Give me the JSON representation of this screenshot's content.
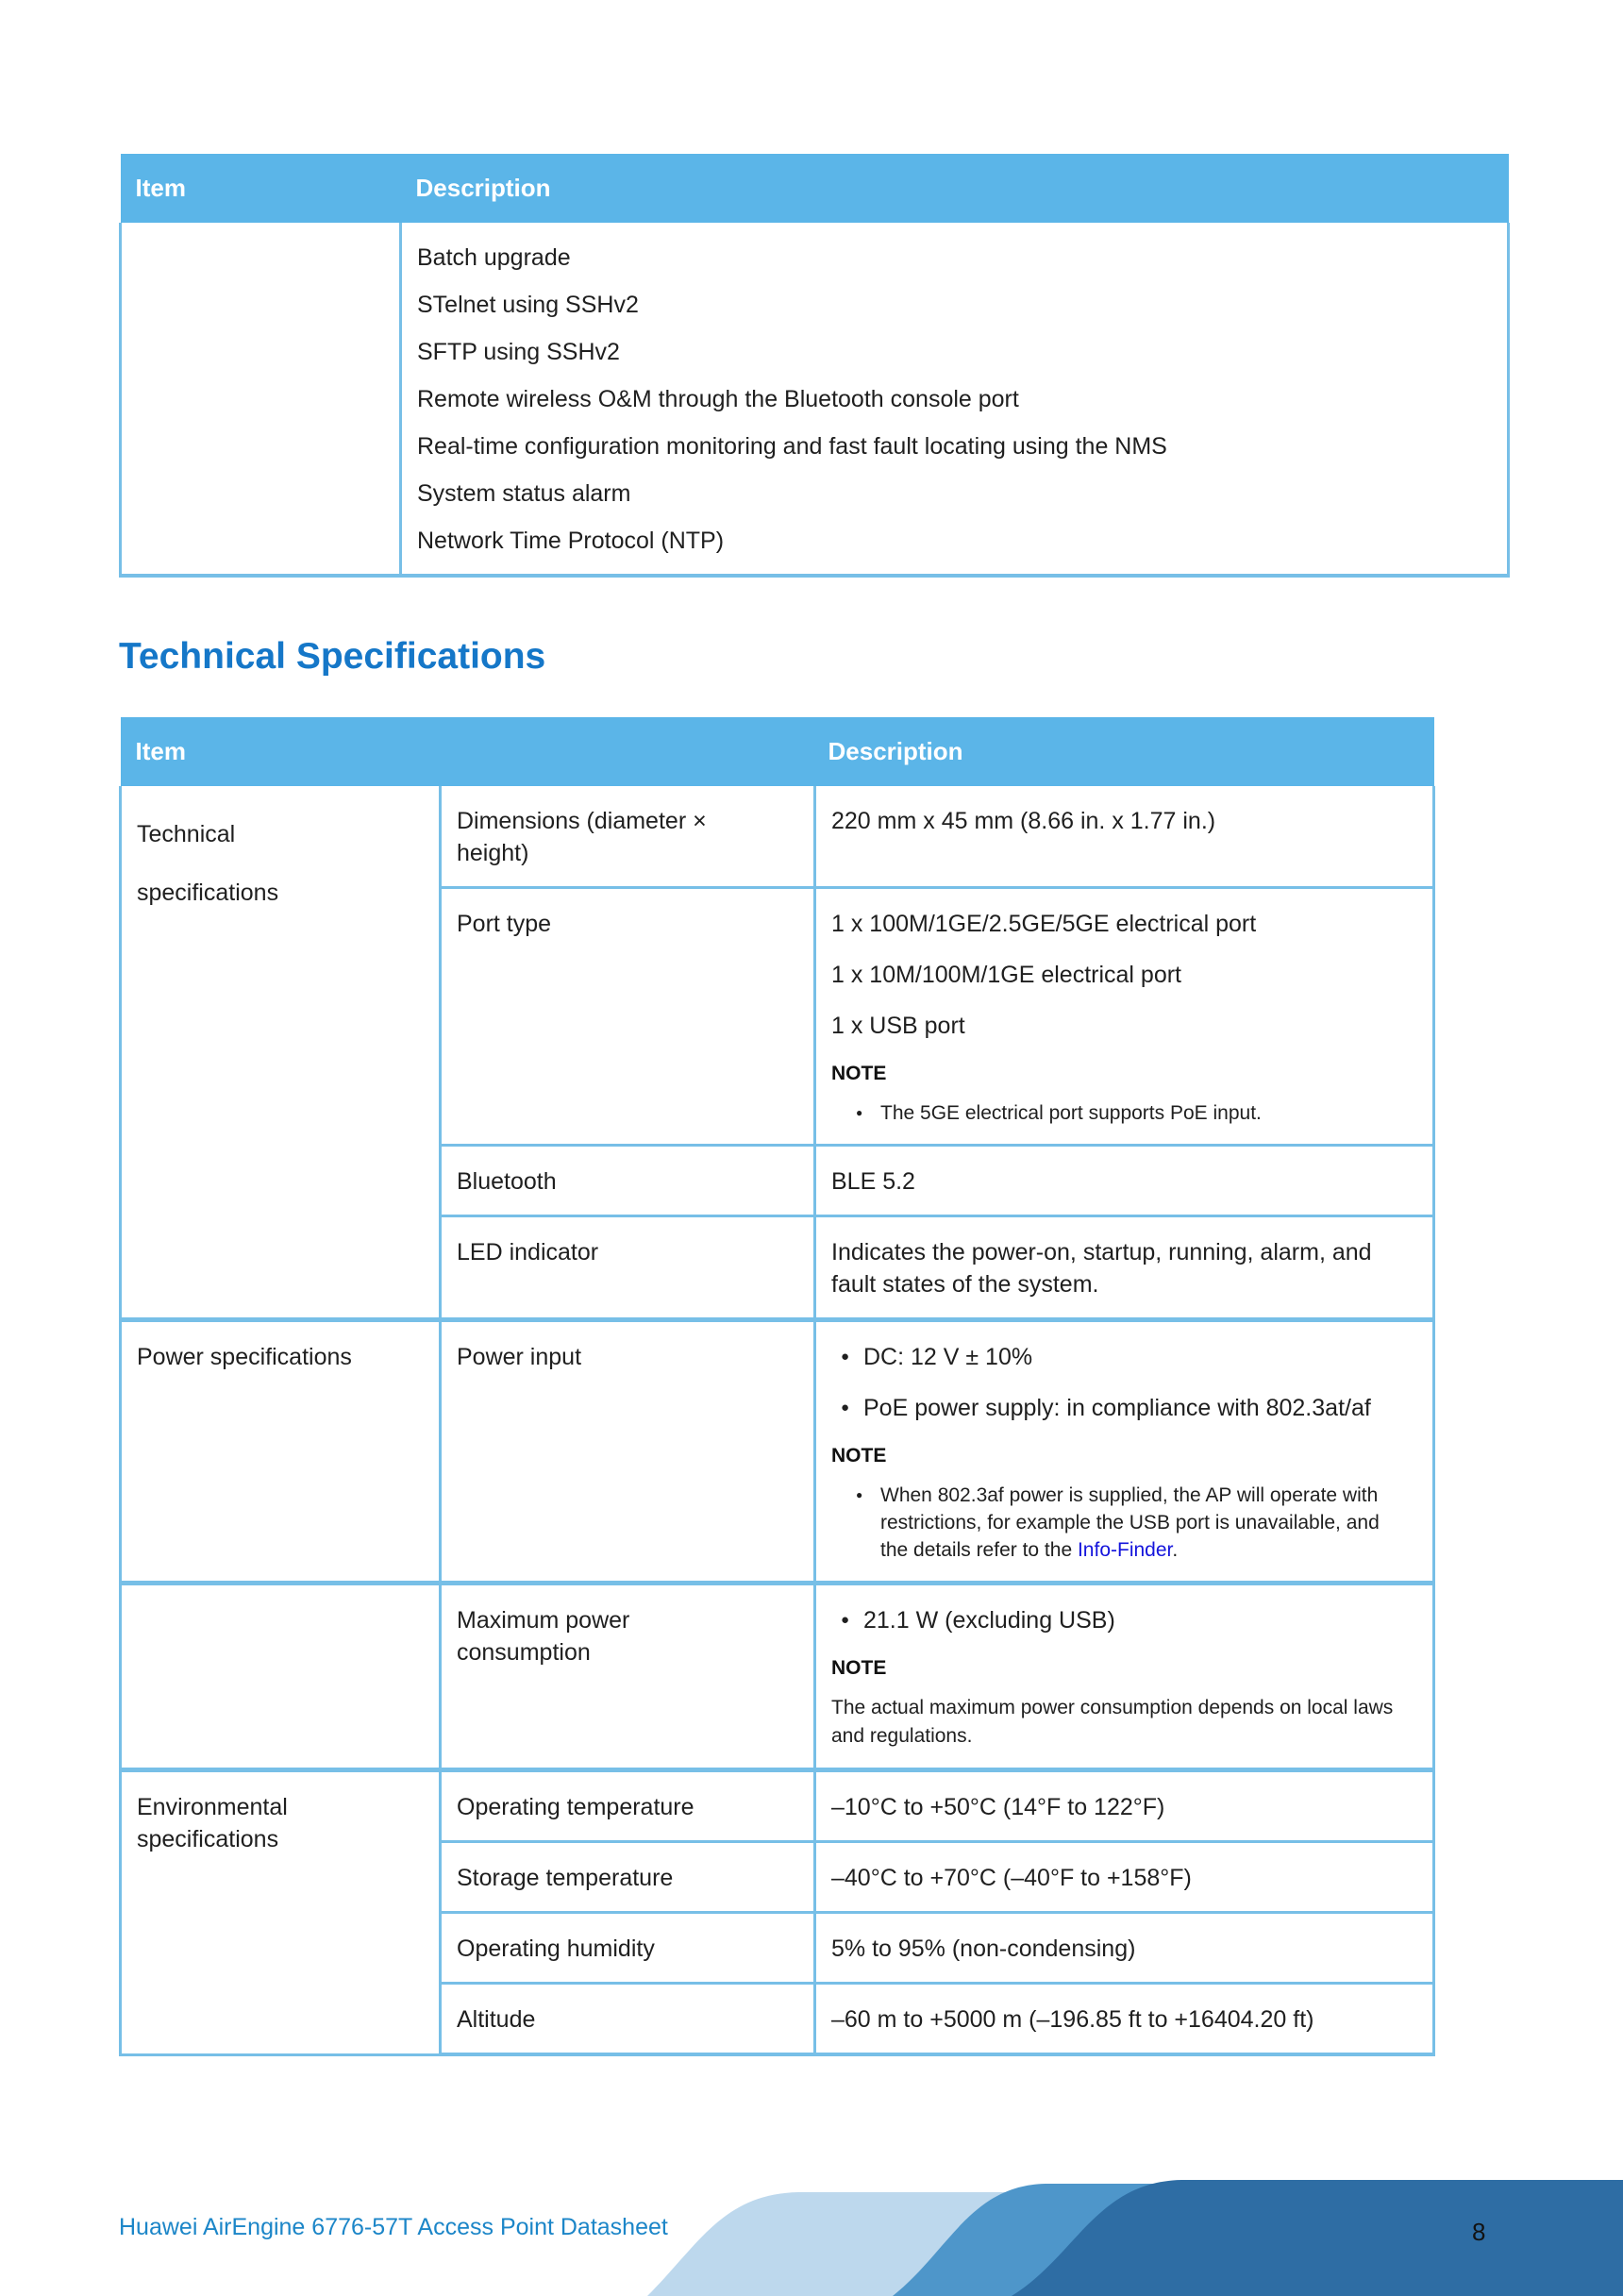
{
  "colors": {
    "header_bg": "#5BB5E8",
    "border": "#77BFE7",
    "heading": "#1577C8",
    "footer_text": "#1C86C8",
    "link": "#1414DC",
    "wave_light": "#BDD8ED",
    "wave_mid": "#4E96CA",
    "wave_dark": "#2E6DA4"
  },
  "section_title": "Technical Specifications",
  "table1": {
    "col_item": "Item",
    "col_desc": "Description",
    "item": "",
    "lines": [
      "Batch upgrade",
      "STelnet using SSHv2",
      "SFTP using SSHv2",
      "Remote wireless O&M through the Bluetooth console port",
      "Real-time configuration monitoring and fast fault locating using the NMS",
      "System status alarm",
      "Network Time Protocol (NTP)"
    ]
  },
  "table2": {
    "col_item": "Item",
    "col_desc": "Description",
    "groups": [
      {
        "item": "Technical\nspecifications",
        "spread": true,
        "rows": [
          {
            "item": "Dimensions (diameter ×\nheight)",
            "blocks": [
              {
                "t": "p",
                "x": "220 mm x 45 mm (8.66 in. x 1.77 in.)"
              }
            ]
          },
          {
            "item": "Port type",
            "blocks": [
              {
                "t": "p",
                "x": "1 x 100M/1GE/2.5GE/5GE electrical port"
              },
              {
                "t": "p",
                "x": "1 x 10M/100M/1GE electrical port"
              },
              {
                "t": "p",
                "x": "1 x USB port"
              },
              {
                "t": "nl",
                "x": "NOTE"
              },
              {
                "t": "nb",
                "x": "The 5GE electrical port supports PoE input."
              }
            ]
          },
          {
            "item": "Bluetooth",
            "blocks": [
              {
                "t": "p",
                "x": "BLE 5.2"
              }
            ]
          },
          {
            "item": "LED indicator",
            "blocks": [
              {
                "t": "p",
                "x": "Indicates the power-on, startup, running, alarm, and fault states of the system."
              }
            ]
          }
        ]
      },
      {
        "item": "Power specifications",
        "rows": [
          {
            "item": "Power input",
            "blocks": [
              {
                "t": "b",
                "x": "DC: 12 V ± 10%"
              },
              {
                "t": "b",
                "x": "PoE power supply: in compliance with 802.3at/af"
              },
              {
                "t": "nl",
                "x": "NOTE"
              },
              {
                "t": "nb",
                "segs": [
                  {
                    "x": "When 802.3af power is supplied, the AP will operate with restrictions, for example the USB port is unavailable, and the details refer to the "
                  },
                  {
                    "x": "Info-Finder",
                    "link": true
                  },
                  {
                    "x": "."
                  }
                ]
              }
            ]
          }
        ]
      },
      {
        "item": "",
        "rows": [
          {
            "item": "Maximum power\nconsumption",
            "blocks": [
              {
                "t": "b",
                "x": "21.1 W (excluding USB)"
              },
              {
                "t": "nl",
                "x": "NOTE"
              },
              {
                "t": "np",
                "x": "The actual maximum power consumption depends on local laws and regulations."
              }
            ]
          }
        ]
      },
      {
        "item": "Environmental\nspecifications",
        "rows": [
          {
            "item": "Operating temperature",
            "blocks": [
              {
                "t": "p",
                "x": "–10°C to +50°C (14°F to 122°F)"
              }
            ]
          },
          {
            "item": "Storage temperature",
            "blocks": [
              {
                "t": "p",
                "x": "–40°C to +70°C (–40°F to +158°F)"
              }
            ]
          },
          {
            "item": "Operating humidity",
            "blocks": [
              {
                "t": "p",
                "x": "5% to 95% (non-condensing)"
              }
            ]
          },
          {
            "item": "Altitude",
            "blocks": [
              {
                "t": "p",
                "x": "–60 m to +5000 m (–196.85 ft to +16404.20 ft)"
              }
            ]
          }
        ]
      }
    ]
  },
  "footer": {
    "doc_title": "Huawei AirEngine 6776-57T Access Point Datasheet",
    "page_number": "8"
  }
}
